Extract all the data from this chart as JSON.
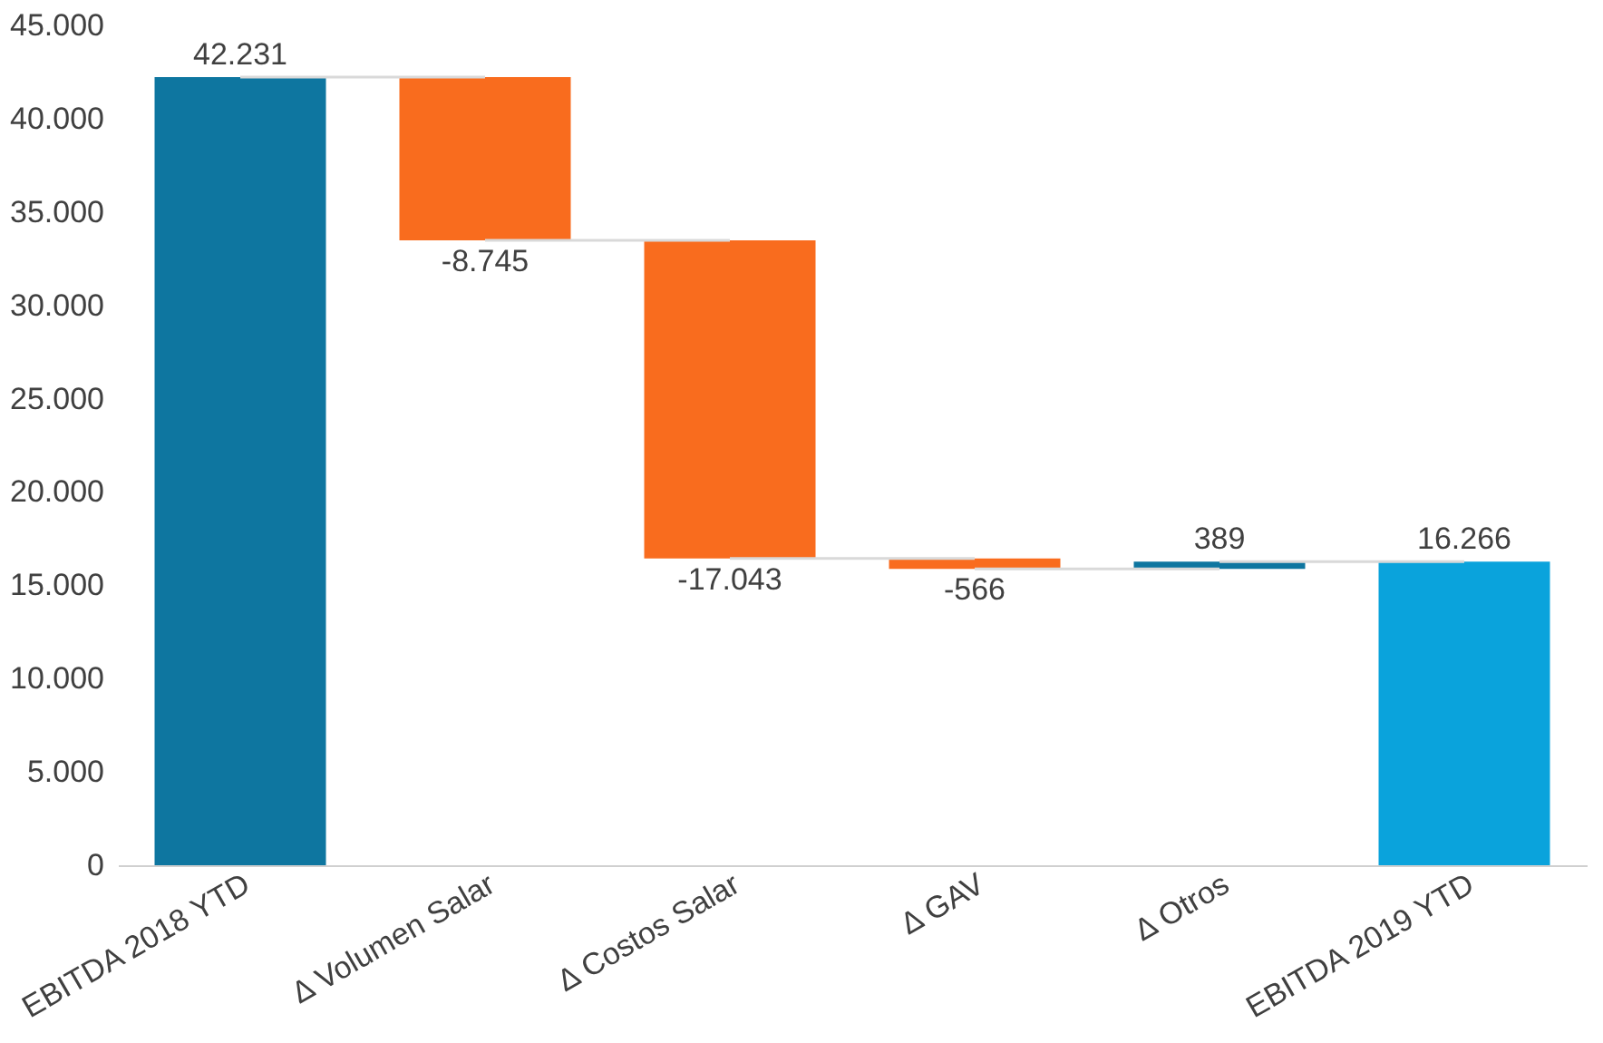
{
  "chart_data": {
    "type": "bar",
    "categories": [
      "EBITDA 2018 YTD",
      "Δ Volumen Salar",
      "Δ Costos Salar",
      "Δ GAV",
      "Δ Otros",
      "EBITDA 2019 YTD"
    ],
    "values": [
      42231,
      -8745,
      -17043,
      -566,
      389,
      16266
    ],
    "base": [
      0,
      42231,
      33486,
      16443,
      15877,
      0
    ],
    "colors": [
      "#0e76a0",
      "#f96c1e",
      "#f96c1e",
      "#f96c1e",
      "#0e76a0",
      "#0aa3dc"
    ],
    "value_labels": [
      "42.231",
      "-8.745",
      "-17.043",
      "-566",
      "389",
      "16.266"
    ],
    "ylim": [
      0,
      45000
    ],
    "yticks": [
      {
        "value": 0,
        "label": "0"
      },
      {
        "value": 5000,
        "label": "5.000"
      },
      {
        "value": 10000,
        "label": "10.000"
      },
      {
        "value": 15000,
        "label": "15.000"
      },
      {
        "value": 20000,
        "label": "20.000"
      },
      {
        "value": 25000,
        "label": "25.000"
      },
      {
        "value": 30000,
        "label": "30.000"
      },
      {
        "value": 35000,
        "label": "35.000"
      },
      {
        "value": 40000,
        "label": "40.000"
      },
      {
        "value": 45000,
        "label": "45.000"
      }
    ],
    "legend": false
  }
}
